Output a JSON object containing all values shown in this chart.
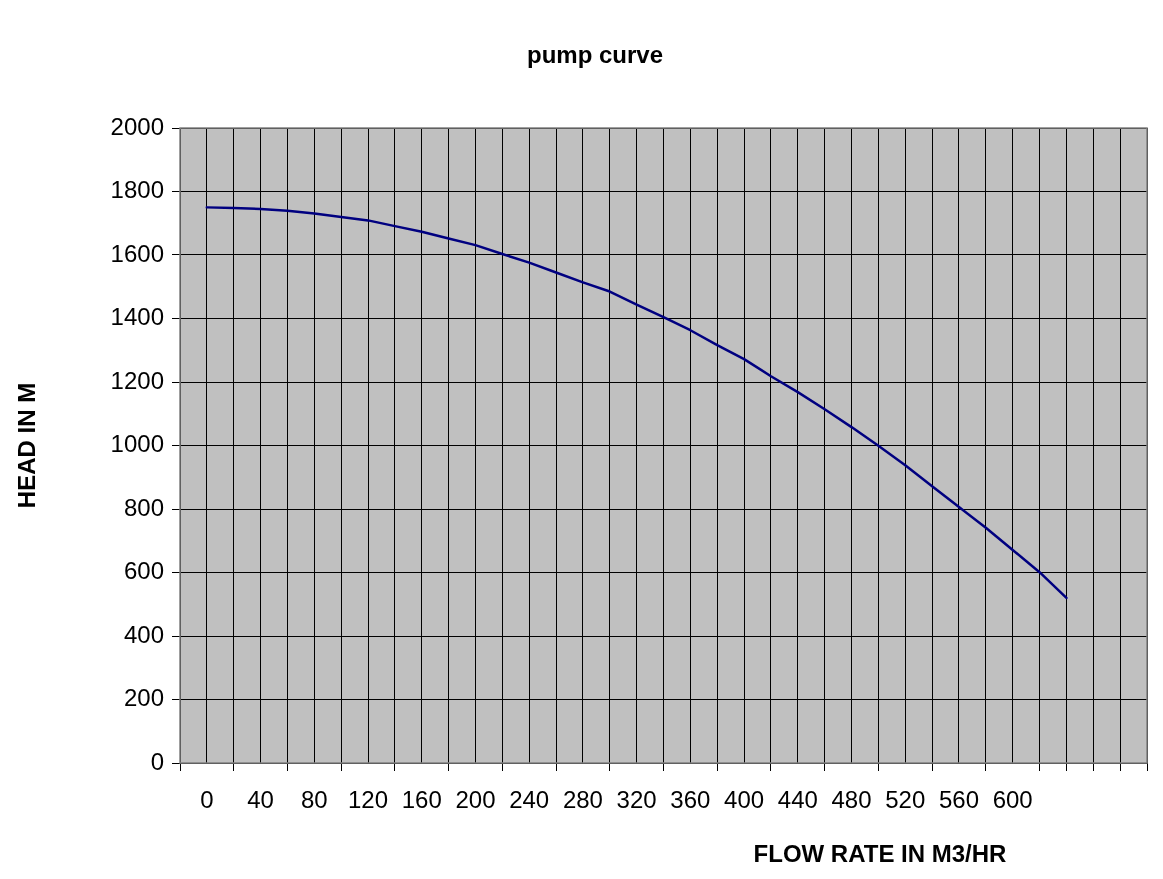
{
  "chart_data": {
    "type": "line",
    "title": "pump curve",
    "xlabel": "FLOW RATE IN M3/HR",
    "ylabel": "HEAD IN M",
    "x": [
      0,
      20,
      40,
      60,
      80,
      100,
      120,
      140,
      160,
      180,
      200,
      220,
      240,
      260,
      280,
      300,
      320,
      340,
      360,
      380,
      400,
      420,
      440,
      460,
      480,
      500,
      520,
      540,
      560,
      580,
      600,
      620,
      640
    ],
    "series": [
      {
        "color": "#000080",
        "values": [
          1750,
          1748,
          1745,
          1739,
          1731,
          1720,
          1709,
          1691,
          1673,
          1652,
          1631,
          1603,
          1576,
          1545,
          1514,
          1485,
          1444,
          1404,
          1363,
          1316,
          1272,
          1218,
          1168,
          1114,
          1058,
          999,
          938,
          872,
          806,
          741,
          671,
          601,
          520
        ]
      }
    ],
    "xlim": [
      -20,
      700
    ],
    "xticks": [
      {
        "value": -20,
        "label": null
      },
      0,
      {
        "value": 20,
        "label": null
      },
      40,
      {
        "value": 60,
        "label": null
      },
      80,
      {
        "value": 100,
        "label": null
      },
      120,
      {
        "value": 140,
        "label": null
      },
      160,
      {
        "value": 180,
        "label": null
      },
      200,
      {
        "value": 220,
        "label": null
      },
      240,
      {
        "value": 260,
        "label": null
      },
      280,
      {
        "value": 300,
        "label": null
      },
      320,
      {
        "value": 340,
        "label": null
      },
      360,
      {
        "value": 380,
        "label": null
      },
      400,
      {
        "value": 420,
        "label": null
      },
      440,
      {
        "value": 460,
        "label": null
      },
      480,
      {
        "value": 500,
        "label": null
      },
      520,
      {
        "value": 540,
        "label": null
      },
      560,
      {
        "value": 580,
        "label": null
      },
      600,
      {
        "value": 620,
        "label": null
      },
      {
        "value": 640,
        "label": null
      },
      {
        "value": 660,
        "label": null
      },
      {
        "value": 680,
        "label": null
      },
      {
        "value": 700,
        "label": null
      }
    ],
    "ylim": [
      0,
      2000
    ],
    "yticks": [
      0,
      200,
      400,
      600,
      800,
      1000,
      1200,
      1400,
      1600,
      1800,
      2000
    ],
    "grid": true,
    "legend": false,
    "marker": "none",
    "line_style": "solid"
  }
}
